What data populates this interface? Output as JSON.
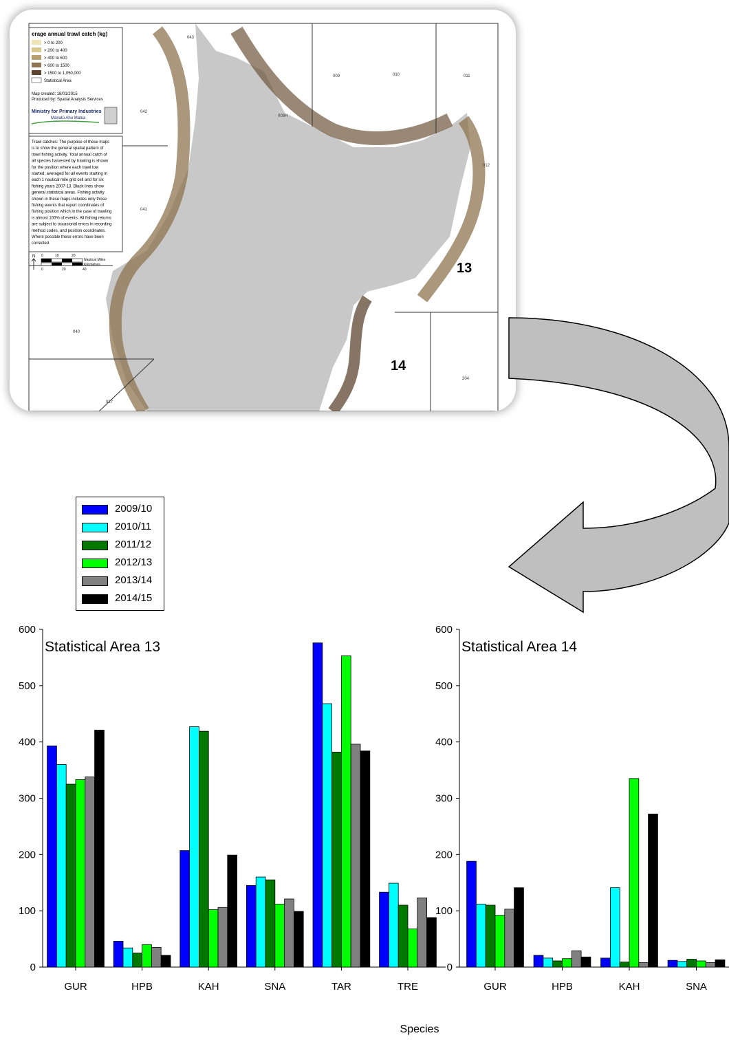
{
  "map": {
    "legend_title": "erage annual trawl catch (kg)",
    "legend_items": [
      {
        "label": "> 0 to 200",
        "color": "#efe4b8"
      },
      {
        "label": "> 200 to 400",
        "color": "#d9c890"
      },
      {
        "label": "> 400 to 600",
        "color": "#b8a070"
      },
      {
        "label": "> 600 to 1500",
        "color": "#8e7450"
      },
      {
        "label": "> 1500 to 1,050,000",
        "color": "#5e4630"
      }
    ],
    "statistical_area_label": "Statistical Area",
    "map_created": "Map created: 18/01/2015",
    "produced_by": "Produced by: Spatial Analysis Services",
    "ministry": "Ministry for Primary Industries",
    "ministry_maori": "Manatū Ahu Matua",
    "note_lines": [
      "Trawl catches: The purpose of these maps",
      "is to show the general spatial pattern of",
      "trawl fishing activity. Total annual catch of",
      "all species harvested by trawling is shown",
      "for the position where each trawl tow",
      "started, averaged for all events starting in",
      "each 1 nautical mile grid cell and for six",
      "fishing years 2007-13. Black lines show",
      "general statistical areas. Fishing activity",
      "shown in these maps includes only those",
      "fishing events that report coordinates of",
      "fishing position which in the case of trawling",
      "is almost 100% of events. All fishing returns",
      "are subject to occasional errors in recording",
      "method codes, and position coordinates.",
      "Where possible these errors have been",
      "corrected."
    ],
    "scale_ticks_top": [
      "0",
      "10",
      "20"
    ],
    "scale_ticks_bottom": [
      "0",
      "20",
      "40"
    ],
    "scale_unit_top": "Nautical Miles",
    "scale_unit_bottom": "Kilometres",
    "north": "N",
    "area_codes": [
      "043",
      "009",
      "010",
      "011",
      "042",
      "009H",
      "012",
      "041",
      "040",
      "037",
      "204"
    ],
    "area_13": "13",
    "area_14": "14"
  },
  "chart_data": [
    {
      "type": "bar",
      "title": "Statistical Area 13",
      "categories": [
        "GUR",
        "HPB",
        "KAH",
        "SNA",
        "TAR",
        "TRE"
      ],
      "ylim": [
        0,
        600
      ],
      "yticks": [
        0,
        100,
        200,
        300,
        400,
        500,
        600
      ],
      "xlabel": "Species",
      "legend_position": "top-left",
      "series": [
        {
          "name": "2009/10",
          "color": "#0000ff",
          "values": [
            393,
            46,
            207,
            145,
            576,
            133
          ]
        },
        {
          "name": "2010/11",
          "color": "#00ffff",
          "values": [
            360,
            34,
            427,
            160,
            468,
            149
          ]
        },
        {
          "name": "2011/12",
          "color": "#007800",
          "values": [
            325,
            25,
            419,
            155,
            382,
            110
          ]
        },
        {
          "name": "2012/13",
          "color": "#00ff00",
          "values": [
            333,
            40,
            102,
            112,
            553,
            68
          ]
        },
        {
          "name": "2013/14",
          "color": "#808080",
          "values": [
            338,
            35,
            106,
            121,
            396,
            123
          ]
        },
        {
          "name": "2014/15",
          "color": "#000000",
          "values": [
            421,
            21,
            199,
            99,
            384,
            88
          ]
        }
      ]
    },
    {
      "type": "bar",
      "title": "Statistical Area 14",
      "categories": [
        "GUR",
        "HPB",
        "KAH",
        "SNA"
      ],
      "ylim": [
        0,
        600
      ],
      "yticks": [
        0,
        100,
        200,
        300,
        400,
        500,
        600
      ],
      "series": [
        {
          "name": "2009/10",
          "color": "#0000ff",
          "values": [
            188,
            21,
            16,
            12
          ]
        },
        {
          "name": "2010/11",
          "color": "#00ffff",
          "values": [
            112,
            16,
            141,
            10
          ]
        },
        {
          "name": "2011/12",
          "color": "#007800",
          "values": [
            110,
            11,
            9,
            14
          ]
        },
        {
          "name": "2012/13",
          "color": "#00ff00",
          "values": [
            92,
            15,
            335,
            11
          ]
        },
        {
          "name": "2013/14",
          "color": "#808080",
          "values": [
            103,
            29,
            8,
            8
          ]
        },
        {
          "name": "2014/15",
          "color": "#000000",
          "values": [
            141,
            18,
            272,
            13
          ]
        }
      ]
    }
  ]
}
